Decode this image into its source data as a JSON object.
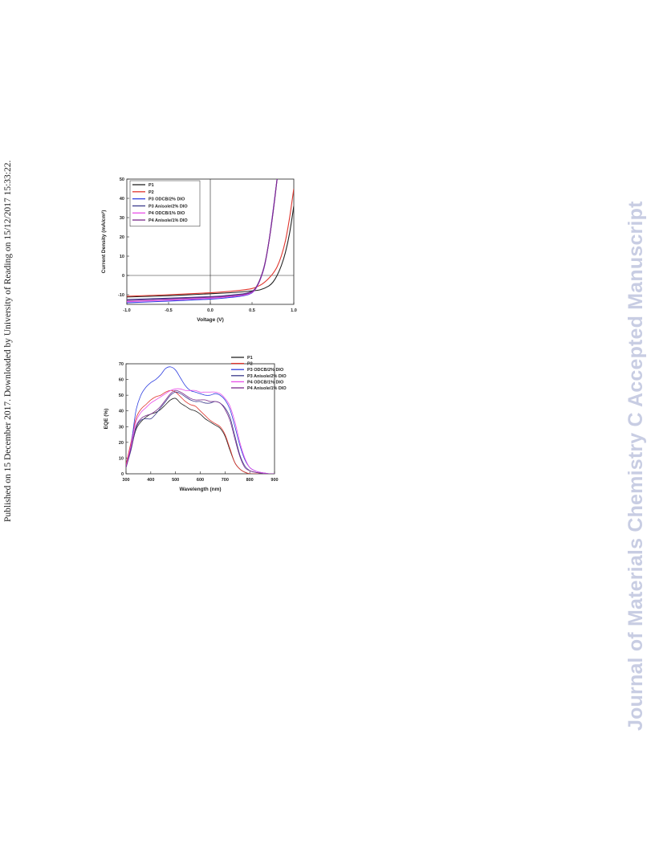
{
  "side_note": "Published on 15 December 2017. Downloaded by University of Reading on 15/12/2017 15:33:22.",
  "watermark": "Journal of Materials Chemistry C Accepted Manuscript",
  "series_colors": {
    "P1": "#222222",
    "P2": "#e0362e",
    "P3 ODCB/2% DIO": "#2f3fe0",
    "P3 Anisole/2% DIO": "#3a3a8c",
    "P4 ODCB/1% DIO": "#e84ee8",
    "P4 Anisole/1% DIO": "#7a2a8a"
  },
  "chart_data": [
    {
      "type": "line",
      "xlabel": "Voltage (V)",
      "ylabel": "Current Density (mA/cm²)",
      "xlim": [
        -1.0,
        1.0
      ],
      "ylim": [
        -15,
        50
      ],
      "xticks": [
        -1.0,
        -0.5,
        0.0,
        0.5,
        1.0
      ],
      "xtick_labels": [
        "-1.0",
        "-0.5",
        "0.0",
        "0.5",
        "1.0"
      ],
      "yticks": [
        -10,
        0,
        10,
        20,
        30,
        40,
        50
      ],
      "ytick_labels": [
        "-10",
        "0",
        "10",
        "20",
        "30",
        "40",
        "50"
      ],
      "legend_position": "top-left",
      "series": [
        {
          "name": "P1",
          "x": [
            -1.0,
            -0.5,
            0.0,
            0.3,
            0.5,
            0.6,
            0.7,
            0.75,
            0.8,
            0.85,
            0.9,
            0.95,
            1.0
          ],
          "values": [
            -11.2,
            -10.5,
            -9.5,
            -8.8,
            -8.0,
            -7.4,
            -5.5,
            -3.5,
            0.0,
            5.0,
            12.0,
            22.0,
            36.0
          ]
        },
        {
          "name": "P2",
          "x": [
            -1.0,
            -0.5,
            0.0,
            0.3,
            0.5,
            0.6,
            0.65,
            0.7,
            0.75,
            0.8,
            0.85,
            0.9,
            0.95,
            1.0
          ],
          "values": [
            -10.8,
            -10.0,
            -9.0,
            -8.0,
            -6.8,
            -5.0,
            -3.5,
            -1.5,
            1.0,
            4.5,
            10.0,
            18.0,
            30.0,
            45.0
          ]
        },
        {
          "name": "P3 ODCB/2% DIO",
          "x": [
            -1.0,
            -0.5,
            0.0,
            0.2,
            0.4,
            0.5,
            0.55,
            0.6,
            0.65,
            0.7,
            0.75,
            0.8
          ],
          "values": [
            -14.2,
            -13.3,
            -12.3,
            -11.6,
            -10.5,
            -9.0,
            -6.5,
            -2.0,
            5.0,
            17.0,
            33.0,
            50.0
          ]
        },
        {
          "name": "P3 Anisole/2% DIO",
          "x": [
            -1.0,
            -0.5,
            0.0,
            0.2,
            0.4,
            0.5,
            0.55,
            0.6,
            0.65,
            0.7,
            0.75,
            0.8
          ],
          "values": [
            -12.5,
            -11.8,
            -11.0,
            -10.4,
            -9.5,
            -8.3,
            -6.0,
            -1.5,
            5.5,
            17.0,
            32.0,
            50.0
          ]
        },
        {
          "name": "P4 ODCB/1% DIO",
          "x": [
            -1.0,
            -0.5,
            0.0,
            0.2,
            0.4,
            0.5,
            0.55,
            0.6,
            0.65,
            0.7,
            0.75,
            0.8
          ],
          "values": [
            -13.6,
            -12.8,
            -11.8,
            -11.1,
            -10.2,
            -8.8,
            -6.4,
            -1.8,
            5.2,
            17.0,
            32.5,
            50.0
          ]
        },
        {
          "name": "P4 Anisole/1% DIO",
          "x": [
            -1.0,
            -0.5,
            0.0,
            0.2,
            0.4,
            0.5,
            0.55,
            0.6,
            0.65,
            0.7,
            0.75,
            0.8
          ],
          "values": [
            -13.0,
            -12.2,
            -11.3,
            -10.7,
            -9.8,
            -8.5,
            -6.2,
            -1.6,
            5.3,
            17.0,
            32.2,
            50.0
          ]
        }
      ]
    },
    {
      "type": "line",
      "xlabel": "Wavelength (nm)",
      "ylabel": "EQE (%)",
      "xlim": [
        300,
        900
      ],
      "ylim": [
        0,
        70
      ],
      "xticks": [
        300,
        400,
        500,
        600,
        700,
        800,
        900
      ],
      "xtick_labels": [
        "300",
        "400",
        "500",
        "600",
        "700",
        "800",
        "900"
      ],
      "yticks": [
        0,
        10,
        20,
        30,
        40,
        50,
        60,
        70
      ],
      "ytick_labels": [
        "0",
        "10",
        "20",
        "30",
        "40",
        "50",
        "60",
        "70"
      ],
      "legend_position": "top-right",
      "series": [
        {
          "name": "P1",
          "x": [
            300,
            320,
            340,
            360,
            380,
            400,
            420,
            440,
            460,
            480,
            500,
            520,
            540,
            560,
            580,
            600,
            620,
            640,
            660,
            680,
            700,
            720,
            740,
            760,
            780,
            800,
            820,
            840
          ],
          "values": [
            5,
            16,
            28,
            33,
            36,
            38,
            39,
            41,
            44,
            47,
            48,
            45,
            43,
            41,
            40,
            38,
            35,
            33,
            31,
            29,
            24,
            15,
            7,
            3,
            1,
            0,
            0,
            0
          ]
        },
        {
          "name": "P2",
          "x": [
            300,
            320,
            340,
            360,
            380,
            400,
            420,
            440,
            460,
            480,
            500,
            520,
            540,
            560,
            580,
            600,
            620,
            640,
            660,
            680,
            700,
            720,
            740,
            760,
            780,
            800,
            820,
            840
          ],
          "values": [
            6,
            20,
            35,
            41,
            44,
            47,
            49,
            50,
            52,
            53,
            52,
            49,
            46,
            44,
            43,
            40,
            37,
            34,
            32,
            30,
            25,
            16,
            7,
            3,
            1,
            0,
            0,
            0
          ]
        },
        {
          "name": "P3 ODCB/2% DIO",
          "x": [
            300,
            320,
            340,
            360,
            380,
            400,
            420,
            440,
            460,
            480,
            500,
            520,
            540,
            560,
            580,
            600,
            620,
            640,
            660,
            680,
            700,
            720,
            740,
            760,
            780,
            800,
            820,
            840,
            860,
            880,
            900
          ],
          "values": [
            4,
            18,
            40,
            50,
            55,
            58,
            60,
            63,
            67,
            68,
            66,
            61,
            56,
            53,
            52,
            51,
            50,
            50,
            51,
            50,
            47,
            41,
            30,
            18,
            9,
            4,
            2,
            1,
            0.5,
            0,
            0
          ]
        },
        {
          "name": "P3 Anisole/2% DIO",
          "x": [
            300,
            320,
            340,
            360,
            380,
            400,
            420,
            440,
            460,
            480,
            500,
            520,
            540,
            560,
            580,
            600,
            620,
            640,
            660,
            680,
            700,
            720,
            740,
            760,
            780,
            800,
            820,
            840,
            860,
            880,
            900
          ],
          "values": [
            4,
            15,
            29,
            34,
            35,
            35,
            38,
            42,
            46,
            50,
            52,
            51,
            49,
            47,
            46,
            46,
            45,
            45,
            46,
            45,
            42,
            36,
            24,
            12,
            5,
            2,
            1,
            0.5,
            0,
            0,
            0
          ]
        },
        {
          "name": "P4 ODCB/1% DIO",
          "x": [
            300,
            320,
            340,
            360,
            380,
            400,
            420,
            440,
            460,
            480,
            500,
            520,
            540,
            560,
            580,
            600,
            620,
            640,
            660,
            680,
            700,
            720,
            740,
            760,
            780,
            800,
            820,
            840,
            860,
            880,
            900
          ],
          "values": [
            5,
            18,
            33,
            39,
            42,
            45,
            47,
            49,
            51,
            53,
            54,
            54,
            53,
            53,
            53,
            52,
            52,
            52,
            52,
            51,
            48,
            43,
            33,
            20,
            10,
            4,
            2,
            1,
            0.5,
            0,
            0
          ]
        },
        {
          "name": "P4 Anisole/1% DIO",
          "x": [
            300,
            320,
            340,
            360,
            380,
            400,
            420,
            440,
            460,
            480,
            500,
            520,
            540,
            560,
            580,
            600,
            620,
            640,
            660,
            680,
            700,
            720,
            740,
            760,
            780,
            800,
            820,
            840,
            860,
            880,
            900
          ],
          "values": [
            4,
            16,
            30,
            35,
            37,
            38,
            40,
            43,
            47,
            51,
            53,
            52,
            50,
            48,
            47,
            47,
            47,
            46,
            46,
            45,
            41,
            34,
            22,
            11,
            4,
            2,
            1,
            0.5,
            0,
            0,
            0
          ]
        }
      ]
    }
  ]
}
